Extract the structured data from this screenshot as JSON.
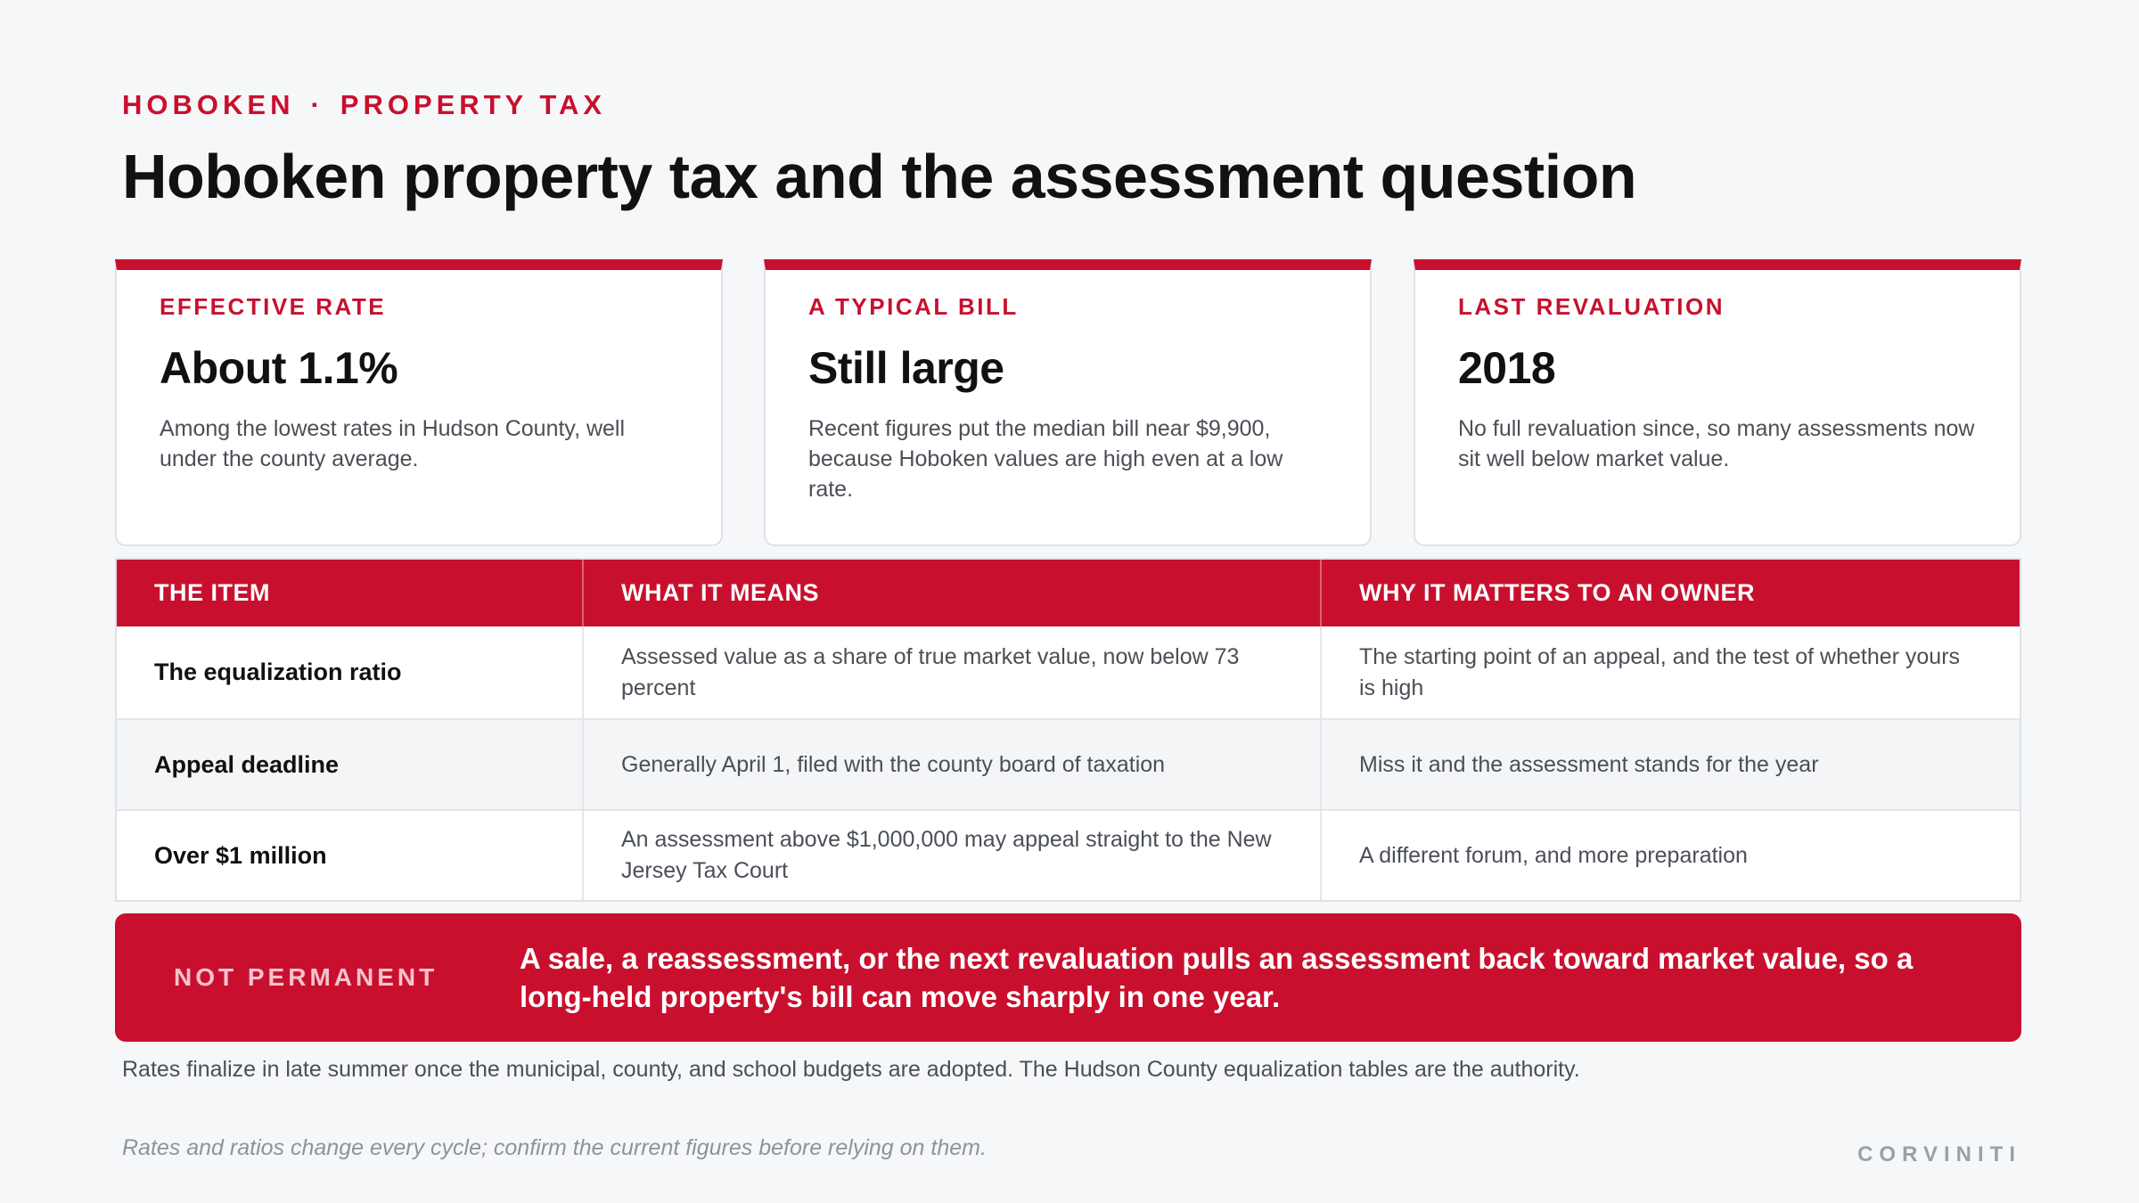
{
  "header": {
    "eyebrow_left": "HOBOKEN",
    "eyebrow_sep": "·",
    "eyebrow_right": "PROPERTY TAX",
    "title": "Hoboken property tax and the assessment question"
  },
  "cards": [
    {
      "label": "EFFECTIVE RATE",
      "value": "About 1.1%",
      "desc": "Among the lowest rates in Hudson County, well under the county average."
    },
    {
      "label": "A TYPICAL BILL",
      "value": "Still large",
      "desc": "Recent figures put the median bill near $9,900, because Hoboken values are high even at a low rate."
    },
    {
      "label": "LAST REVALUATION",
      "value": "2018",
      "desc": "No full revaluation since, so many assessments now sit well below market value."
    }
  ],
  "table": {
    "headers": [
      "THE ITEM",
      "WHAT IT MEANS",
      "WHY IT MATTERS TO AN OWNER"
    ],
    "rows": [
      {
        "item": "The equalization ratio",
        "means": "Assessed value as a share of true market value, now below 73 percent",
        "matters": "The starting point of an appeal, and the test of whether yours is high"
      },
      {
        "item": "Appeal deadline",
        "means": "Generally April 1, filed with the county board of taxation",
        "matters": "Miss it and the assessment stands for the year"
      },
      {
        "item": "Over $1 million",
        "means": "An assessment above $1,000,000 may appeal straight to the New Jersey Tax Court",
        "matters": "A different forum, and more preparation"
      }
    ]
  },
  "callout": {
    "tag": "NOT PERMANENT",
    "message": "A sale, a reassessment, or the next revaluation pulls an assessment back toward market value, so a long-held property's bill can move sharply in one year."
  },
  "footnote": "Rates finalize in late summer once the municipal, county, and school budgets are adopted. The Hudson County equalization tables are the authority.",
  "disclaimer": "Rates and ratios change every cycle; confirm the current figures before relying on them.",
  "brand": "CORVINITI",
  "colors": {
    "accent": "#c8102e",
    "background": "#f6f7f9",
    "text": "#111111",
    "muted": "#4a4f57"
  }
}
